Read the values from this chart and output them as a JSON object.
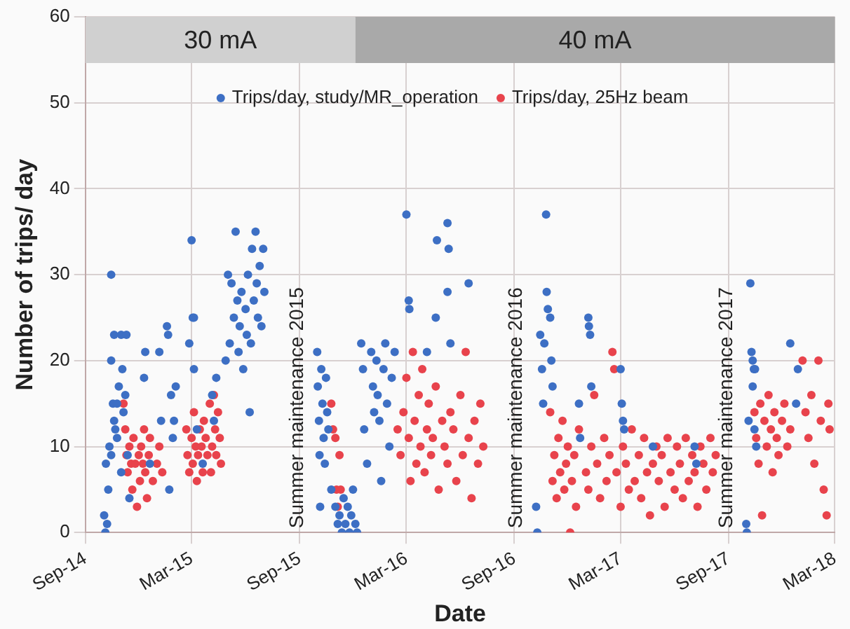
{
  "chart_data": {
    "type": "scatter",
    "xlabel": "Date",
    "ylabel": "Number of trips/ day",
    "xlim": [
      "2014-09-01",
      "2018-03-01"
    ],
    "xticks": [
      {
        "value": "2014-09-01",
        "label": "Sep-14"
      },
      {
        "value": "2015-03-01",
        "label": "Mar-15"
      },
      {
        "value": "2015-09-01",
        "label": "Sep-15"
      },
      {
        "value": "2016-03-01",
        "label": "Mar-16"
      },
      {
        "value": "2016-09-01",
        "label": "Sep-16"
      },
      {
        "value": "2017-03-01",
        "label": "Mar-17"
      },
      {
        "value": "2017-09-01",
        "label": "Sep-17"
      },
      {
        "value": "2018-03-01",
        "label": "Mar-18"
      }
    ],
    "ylim": [
      0,
      60
    ],
    "yticks": [
      0,
      10,
      20,
      30,
      40,
      50,
      60
    ],
    "grid": true,
    "legend": "top",
    "marker": "circle",
    "bands": [
      {
        "axis": "x",
        "from": "2014-09-01",
        "to": "2015-12-05",
        "label": "30 mA",
        "color": "#d0d0d0"
      },
      {
        "axis": "x",
        "from": "2015-12-05",
        "to": "2018-03-01",
        "label": "40 mA",
        "color": "#a9a9a9"
      }
    ],
    "annotations": [
      "Summer maintenance 2015",
      "Summer maintenance 2016",
      "Summer maintenance 2017"
    ],
    "series": [
      {
        "name": "Trips/day, study/MR_operation",
        "color": "#3d6fc4",
        "x": [
          "2014-10-05",
          "2014-10-08",
          "2014-10-03",
          "2014-10-10",
          "2014-10-06",
          "2014-10-12",
          "2014-10-15",
          "2014-10-15",
          "2014-10-18",
          "2014-10-20",
          "2014-10-22",
          "2014-10-25",
          "2014-10-28",
          "2014-10-15",
          "2014-10-25",
          "2014-11-01",
          "2014-11-01",
          "2014-11-05",
          "2014-11-08",
          "2014-11-10",
          "2014-11-12",
          "2014-11-03",
          "2014-10-20",
          "2014-11-15",
          "2014-12-10",
          "2014-12-12",
          "2014-12-20",
          "2015-01-05",
          "2015-01-08",
          "2015-01-18",
          "2015-01-20",
          "2015-01-25",
          "2015-01-28",
          "2015-01-22",
          "2015-01-30",
          "2015-02-02",
          "2015-02-25",
          "2015-03-01",
          "2015-03-03",
          "2015-03-05",
          "2015-03-05",
          "2015-03-10",
          "2015-03-20",
          "2015-04-05",
          "2015-04-08",
          "2015-04-12",
          "2015-04-28",
          "2015-05-02",
          "2015-05-05",
          "2015-05-08",
          "2015-05-12",
          "2015-05-15",
          "2015-05-18",
          "2015-05-20",
          "2015-05-22",
          "2015-05-25",
          "2015-05-28",
          "2015-06-01",
          "2015-06-03",
          "2015-06-05",
          "2015-06-08",
          "2015-06-10",
          "2015-06-12",
          "2015-06-15",
          "2015-06-18",
          "2015-06-20",
          "2015-06-22",
          "2015-06-25",
          "2015-06-28",
          "2015-07-01",
          "2015-07-03",
          "2015-10-01",
          "2015-10-02",
          "2015-10-04",
          "2015-10-05",
          "2015-10-06",
          "2015-10-08",
          "2015-10-10",
          "2015-10-12",
          "2015-10-14",
          "2015-10-16",
          "2015-10-18",
          "2015-10-20",
          "2015-10-25",
          "2015-11-01",
          "2015-11-05",
          "2015-11-08",
          "2015-11-12",
          "2015-11-15",
          "2015-11-18",
          "2015-11-22",
          "2015-11-25",
          "2015-11-28",
          "2015-12-01",
          "2015-12-05",
          "2015-12-08",
          "2015-12-15",
          "2015-12-18",
          "2015-12-20",
          "2015-12-25",
          "2016-01-01",
          "2016-01-04",
          "2016-01-06",
          "2016-01-10",
          "2016-01-12",
          "2016-01-15",
          "2016-01-18",
          "2016-01-22",
          "2016-01-25",
          "2016-01-28",
          "2016-02-01",
          "2016-02-05",
          "2016-02-10",
          "2016-03-01",
          "2016-03-05",
          "2016-03-06",
          "2016-04-05",
          "2016-04-20",
          "2016-04-22",
          "2016-05-10",
          "2016-05-12",
          "2016-05-10",
          "2016-05-15",
          "2016-06-15",
          "2016-10-10",
          "2016-10-08",
          "2016-10-15",
          "2016-10-18",
          "2016-10-20",
          "2016-10-22",
          "2016-10-25",
          "2016-10-26",
          "2016-10-28",
          "2016-11-01",
          "2016-11-03",
          "2016-11-05",
          "2016-12-20",
          "2016-12-22",
          "2017-01-05",
          "2017-01-06",
          "2017-01-08",
          "2017-01-10",
          "2017-03-01",
          "2017-03-03",
          "2017-03-05",
          "2017-03-07",
          "2017-04-25",
          "2017-07-05",
          "2017-07-08",
          "2017-10-01",
          "2017-10-02",
          "2017-10-08",
          "2017-10-10",
          "2017-10-12",
          "2017-10-14",
          "2017-10-16",
          "2017-10-12",
          "2017-10-05",
          "2017-10-15",
          "2017-10-18",
          "2017-12-15",
          "2017-12-28",
          "2017-12-25"
        ],
        "values": [
          0,
          1,
          2,
          5,
          8,
          10,
          30,
          20,
          15,
          13,
          12,
          15,
          17,
          9,
          11,
          23,
          7,
          14,
          16,
          23,
          9,
          19,
          23,
          4,
          18,
          21,
          8,
          21,
          13,
          24,
          23,
          16,
          11,
          5,
          13,
          17,
          22,
          34,
          25,
          25,
          19,
          12,
          8,
          16,
          13,
          18,
          20,
          30,
          22,
          29,
          25,
          35,
          27,
          21,
          24,
          28,
          19,
          26,
          23,
          30,
          14,
          22,
          33,
          27,
          35,
          29,
          25,
          31,
          24,
          33,
          28,
          21,
          17,
          13,
          9,
          3,
          19,
          15,
          11,
          8,
          18,
          14,
          12,
          5,
          3,
          1,
          2,
          0,
          4,
          1,
          3,
          0,
          2,
          5,
          1,
          0,
          22,
          19,
          12,
          8,
          21,
          17,
          14,
          20,
          16,
          13,
          6,
          19,
          22,
          15,
          10,
          18,
          21,
          37,
          27,
          26,
          21,
          25,
          34,
          36,
          33,
          28,
          22,
          29,
          0,
          3,
          23,
          19,
          15,
          22,
          37,
          28,
          26,
          25,
          20,
          17,
          15,
          11,
          25,
          24,
          23,
          17,
          19,
          15,
          13,
          12,
          10,
          10,
          8,
          1,
          0,
          29,
          21,
          20,
          19,
          19,
          17,
          13,
          12,
          10,
          22,
          19,
          15
        ]
      },
      {
        "name": "Trips/day, 25Hz beam",
        "color": "#e8434c",
        "x": [
          "2014-11-05",
          "2014-11-08",
          "2014-11-10",
          "2014-11-12",
          "2014-11-15",
          "2014-11-18",
          "2014-11-20",
          "2014-11-22",
          "2014-11-25",
          "2014-11-28",
          "2014-12-01",
          "2014-12-03",
          "2014-12-05",
          "2014-12-08",
          "2014-12-10",
          "2014-12-12",
          "2014-12-15",
          "2014-12-18",
          "2014-12-20",
          "2014-12-25",
          "2015-01-01",
          "2015-01-05",
          "2015-01-10",
          "2015-02-20",
          "2015-02-22",
          "2015-02-25",
          "2015-03-01",
          "2015-03-03",
          "2015-03-05",
          "2015-03-08",
          "2015-03-10",
          "2015-03-12",
          "2015-03-15",
          "2015-03-18",
          "2015-03-20",
          "2015-03-22",
          "2015-03-25",
          "2015-03-28",
          "2015-04-01",
          "2015-04-03",
          "2015-04-05",
          "2015-04-08",
          "2015-04-10",
          "2015-04-12",
          "2015-04-15",
          "2015-04-18",
          "2015-04-20",
          "2015-10-25",
          "2015-10-28",
          "2015-11-01",
          "2015-11-03",
          "2015-11-05",
          "2015-11-08",
          "2015-11-10",
          "2016-02-15",
          "2016-02-20",
          "2016-02-25",
          "2016-03-01",
          "2016-03-05",
          "2016-03-08",
          "2016-03-12",
          "2016-03-15",
          "2016-03-18",
          "2016-03-22",
          "2016-03-25",
          "2016-03-28",
          "2016-04-01",
          "2016-04-05",
          "2016-04-08",
          "2016-04-12",
          "2016-04-15",
          "2016-04-20",
          "2016-04-25",
          "2016-05-01",
          "2016-05-05",
          "2016-05-10",
          "2016-05-15",
          "2016-05-20",
          "2016-05-25",
          "2016-06-01",
          "2016-06-05",
          "2016-06-10",
          "2016-06-15",
          "2016-06-20",
          "2016-06-25",
          "2016-07-01",
          "2016-07-05",
          "2016-07-10",
          "2016-11-01",
          "2016-11-05",
          "2016-11-08",
          "2016-11-12",
          "2016-11-15",
          "2016-11-18",
          "2016-11-22",
          "2016-11-25",
          "2016-11-28",
          "2016-12-01",
          "2016-12-05",
          "2016-12-08",
          "2016-12-12",
          "2016-12-15",
          "2016-12-20",
          "2017-01-01",
          "2017-01-05",
          "2017-01-10",
          "2017-01-15",
          "2017-01-20",
          "2017-01-25",
          "2017-02-01",
          "2017-02-05",
          "2017-02-10",
          "2017-02-15",
          "2017-02-18",
          "2017-02-22",
          "2017-03-01",
          "2017-03-05",
          "2017-03-10",
          "2017-03-15",
          "2017-03-20",
          "2017-03-25",
          "2017-04-01",
          "2017-04-05",
          "2017-04-10",
          "2017-04-15",
          "2017-04-20",
          "2017-04-25",
          "2017-05-01",
          "2017-05-05",
          "2017-05-10",
          "2017-05-15",
          "2017-05-20",
          "2017-05-25",
          "2017-06-01",
          "2017-06-05",
          "2017-06-10",
          "2017-06-15",
          "2017-06-20",
          "2017-06-25",
          "2017-07-01",
          "2017-07-05",
          "2017-07-10",
          "2017-07-15",
          "2017-07-20",
          "2017-07-25",
          "2017-08-01",
          "2017-08-05",
          "2017-08-10",
          "2017-10-15",
          "2017-10-18",
          "2017-10-22",
          "2017-10-25",
          "2017-10-28",
          "2017-11-01",
          "2017-11-05",
          "2017-11-08",
          "2017-11-12",
          "2017-11-15",
          "2017-11-18",
          "2017-11-22",
          "2017-11-25",
          "2017-12-01",
          "2017-12-05",
          "2017-12-10",
          "2017-12-15",
          "2018-01-05",
          "2018-01-10",
          "2018-01-15",
          "2018-01-20",
          "2018-01-25",
          "2018-02-01",
          "2018-02-05",
          "2018-02-10",
          "2018-02-15",
          "2018-02-18",
          "2018-02-20"
        ],
        "values": [
          15,
          12,
          9,
          7,
          10,
          8,
          5,
          11,
          8,
          3,
          9,
          6,
          10,
          8,
          12,
          7,
          4,
          9,
          11,
          6,
          8,
          10,
          7,
          12,
          9,
          7,
          11,
          8,
          14,
          10,
          6,
          9,
          12,
          10,
          7,
          13,
          11,
          9,
          15,
          7,
          10,
          16,
          12,
          9,
          14,
          11,
          8,
          15,
          12,
          11,
          5,
          3,
          9,
          5,
          12,
          9,
          14,
          18,
          11,
          6,
          21,
          13,
          8,
          16,
          10,
          19,
          7,
          12,
          15,
          9,
          11,
          17,
          5,
          13,
          10,
          8,
          14,
          12,
          6,
          16,
          9,
          21,
          11,
          4,
          13,
          8,
          15,
          10,
          14,
          6,
          9,
          4,
          11,
          7,
          13,
          5,
          8,
          10,
          0,
          6,
          9,
          3,
          12,
          7,
          5,
          10,
          16,
          8,
          4,
          11,
          6,
          9,
          21,
          19,
          7,
          3,
          10,
          8,
          5,
          12,
          6,
          9,
          4,
          11,
          7,
          2,
          8,
          10,
          6,
          9,
          3,
          11,
          7,
          5,
          10,
          8,
          4,
          11,
          6,
          9,
          7,
          3,
          10,
          8,
          5,
          11,
          7,
          9,
          14,
          11,
          8,
          15,
          2,
          13,
          10,
          16,
          12,
          7,
          14,
          11,
          9,
          13,
          15,
          10,
          12,
          20,
          14,
          11,
          16,
          8,
          20,
          13,
          5,
          2,
          15,
          12
        ]
      }
    ]
  }
}
